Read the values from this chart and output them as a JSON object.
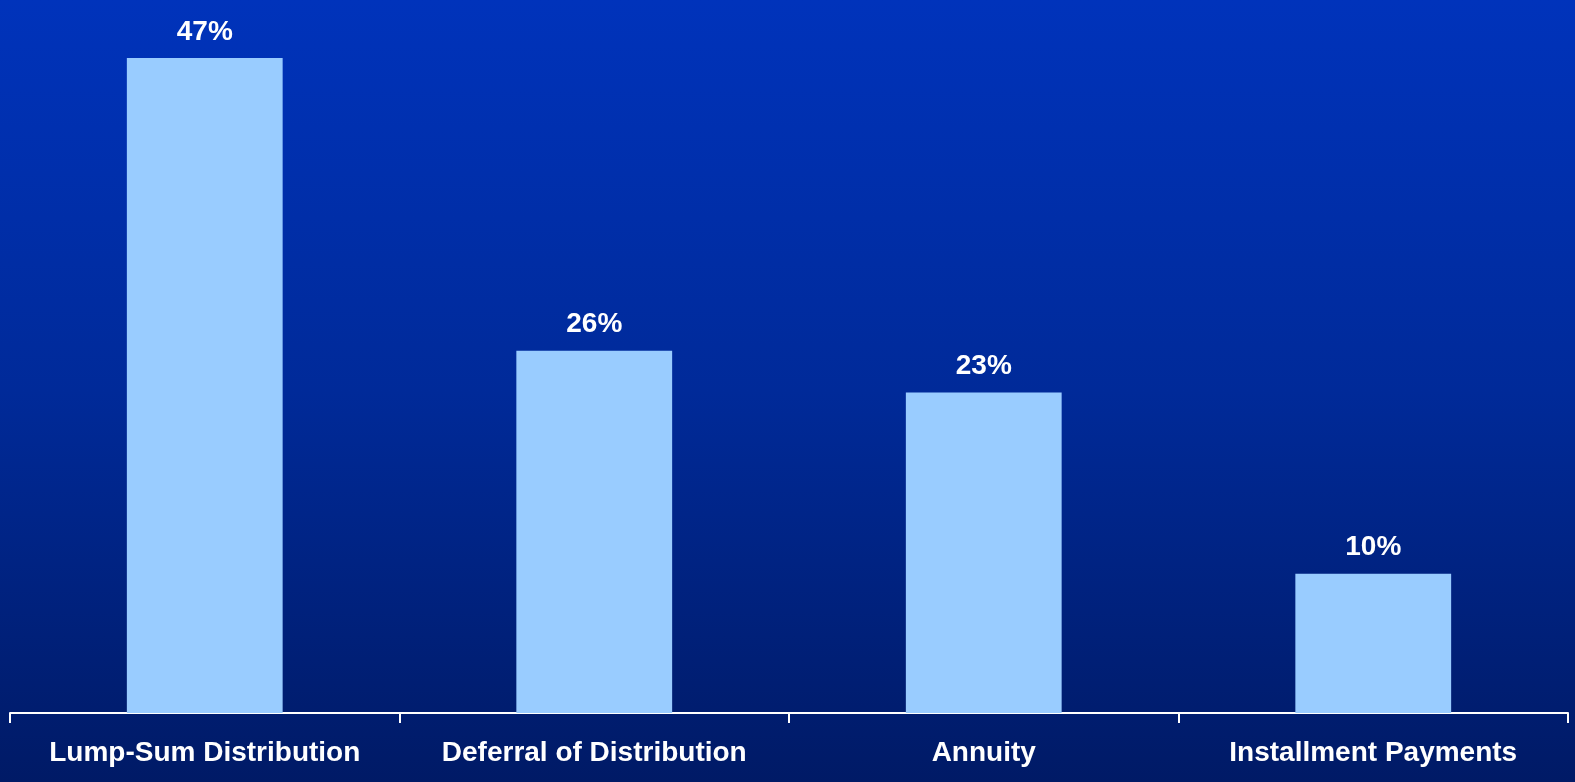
{
  "chart_data": {
    "type": "bar",
    "categories": [
      "Lump-Sum Distribution",
      "Deferral of Distribution",
      "Annuity",
      "Installment Payments"
    ],
    "values": [
      47,
      26,
      23,
      10
    ],
    "color": "#99ccff",
    "data_labels": true,
    "value_labels": [
      "47%",
      "26%",
      "23%",
      "10%"
    ]
  }
}
